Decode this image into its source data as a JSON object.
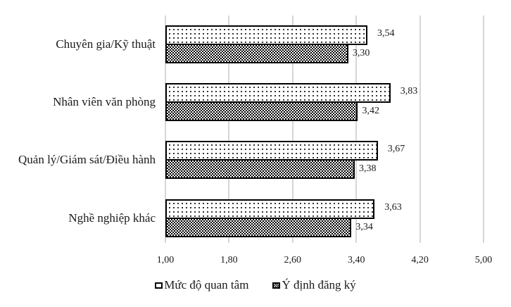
{
  "chart_data": {
    "type": "bar",
    "orientation": "horizontal",
    "title": "",
    "xlabel": "",
    "ylabel": "",
    "categories": [
      "Chuyên gia/Kỹ thuật",
      "Nhân viên văn phòng",
      "Quản lý/Giám sát/Điều hành",
      "Nghề nghiệp khác"
    ],
    "series": [
      {
        "name": "Mức độ quan tâm",
        "pattern": "dots",
        "values": [
          3.54,
          3.83,
          3.67,
          3.63
        ],
        "labels": [
          "3,54",
          "3,83",
          "3,67",
          "3,63"
        ]
      },
      {
        "name": "Ý định đăng ký",
        "pattern": "checks",
        "values": [
          3.3,
          3.42,
          3.38,
          3.34
        ],
        "labels": [
          "3,30",
          "3,42",
          "3,38",
          "3,34"
        ]
      }
    ],
    "xlim": [
      1.0,
      5.0
    ],
    "xticks": [
      1.0,
      1.8,
      2.6,
      3.4,
      4.2,
      5.0
    ],
    "xtick_labels": [
      "1,00",
      "1,80",
      "2,60",
      "3,40",
      "4,20",
      "5,00"
    ],
    "grid": "vertical",
    "legend_position": "bottom",
    "colors": {
      "bar_border": "#000000",
      "gridline": "#d6d6d6",
      "background": "#ffffff"
    }
  },
  "legend": {
    "items": [
      {
        "label": "Mức độ quan tâm"
      },
      {
        "label": "Ý định đăng ký"
      }
    ]
  }
}
